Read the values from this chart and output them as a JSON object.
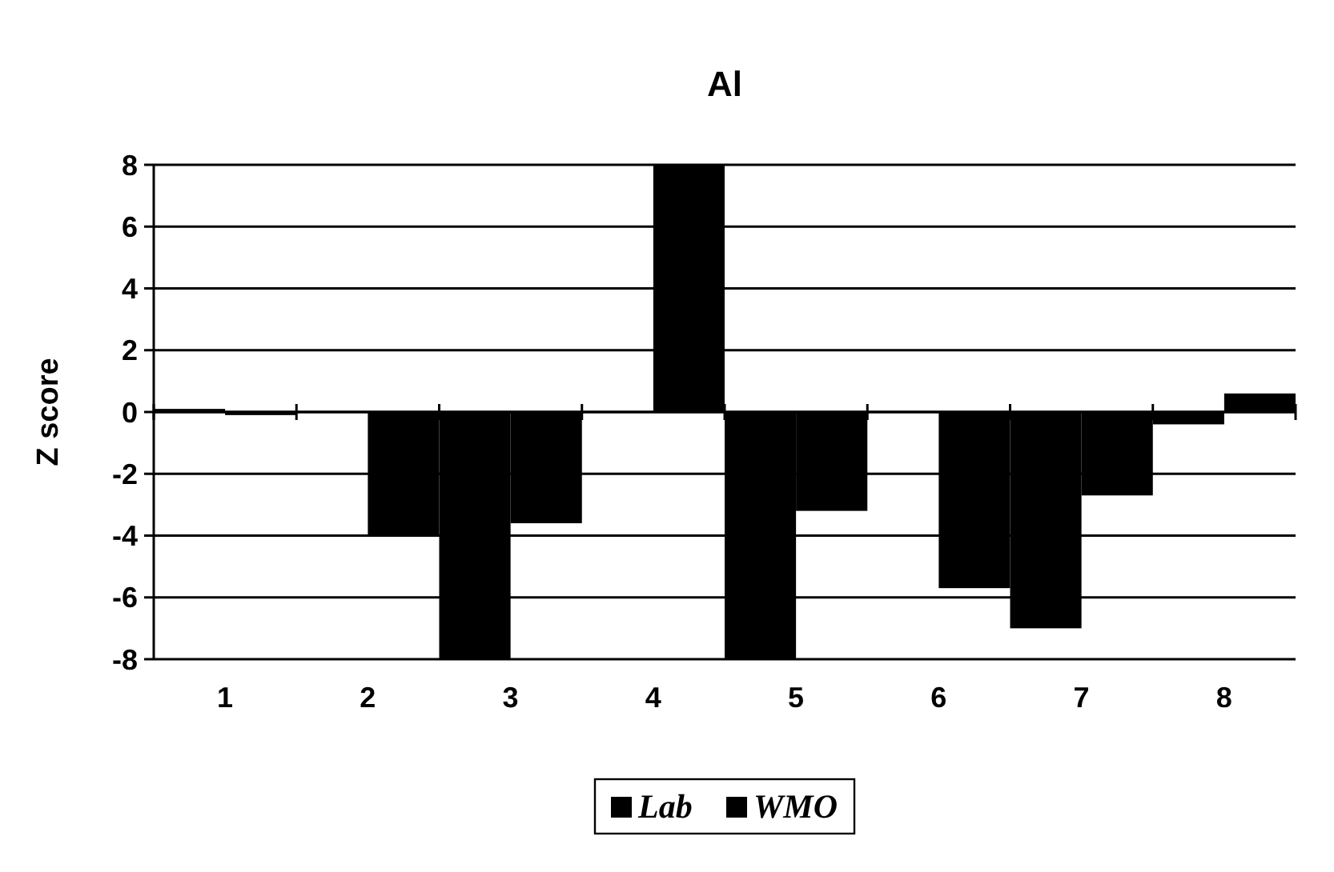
{
  "chart_data": {
    "type": "bar",
    "title": "Al",
    "ylabel": "Z score",
    "categories": [
      "1",
      "2",
      "3",
      "4",
      "5",
      "6",
      "7",
      "8"
    ],
    "series": [
      {
        "name": "Lab",
        "color": "#000000",
        "values": [
          0.1,
          null,
          -8,
          null,
          -8,
          null,
          -7,
          -0.4
        ]
      },
      {
        "name": "WMO",
        "color": "#000000",
        "values": [
          -0.1,
          -4,
          -3.6,
          8,
          -3.2,
          -5.7,
          -2.7,
          0.6
        ]
      }
    ],
    "ylim": [
      -8,
      8
    ],
    "yticks": [
      -8,
      -6,
      -4,
      -2,
      0,
      2,
      4,
      6,
      8
    ],
    "grid": "y",
    "legend": "bottom"
  }
}
